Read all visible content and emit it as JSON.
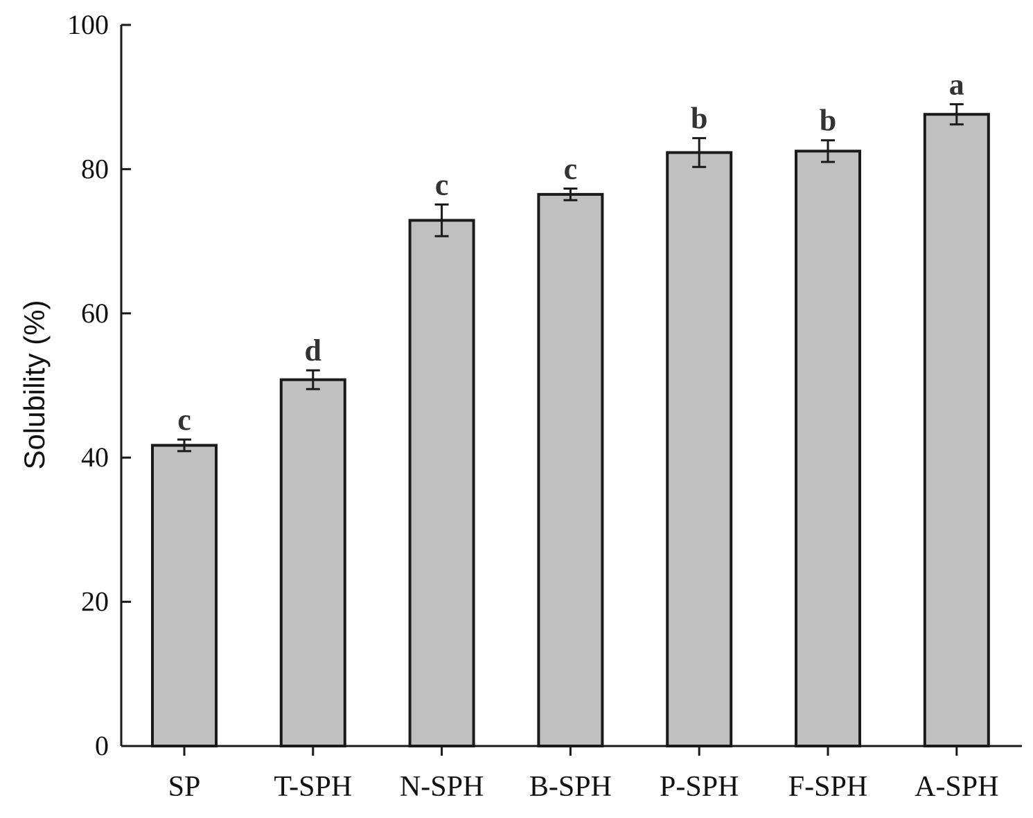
{
  "chart_data": {
    "type": "bar",
    "title": "",
    "xlabel": "",
    "ylabel": "Solubility (%)",
    "ylim": [
      0,
      100
    ],
    "yticks": [
      0,
      20,
      40,
      60,
      80,
      100
    ],
    "categories": [
      "SP",
      "T-SPH",
      "N-SPH",
      "B-SPH",
      "P-SPH",
      "F-SPH",
      "A-SPH"
    ],
    "values": [
      41.7,
      50.8,
      72.9,
      76.5,
      82.3,
      82.5,
      87.6
    ],
    "errors": [
      0.8,
      1.3,
      2.2,
      0.8,
      2.0,
      1.5,
      1.4
    ],
    "significance": [
      "c",
      "d",
      "c",
      "c",
      "b",
      "b",
      "a"
    ],
    "grid": false,
    "colors": {
      "bar_fill": "#c0c0c0",
      "bar_stroke": "#1a1a1a",
      "axis": "#1a1a1a",
      "error_bar": "#1a1a1a",
      "significance_text": "#333333"
    }
  }
}
